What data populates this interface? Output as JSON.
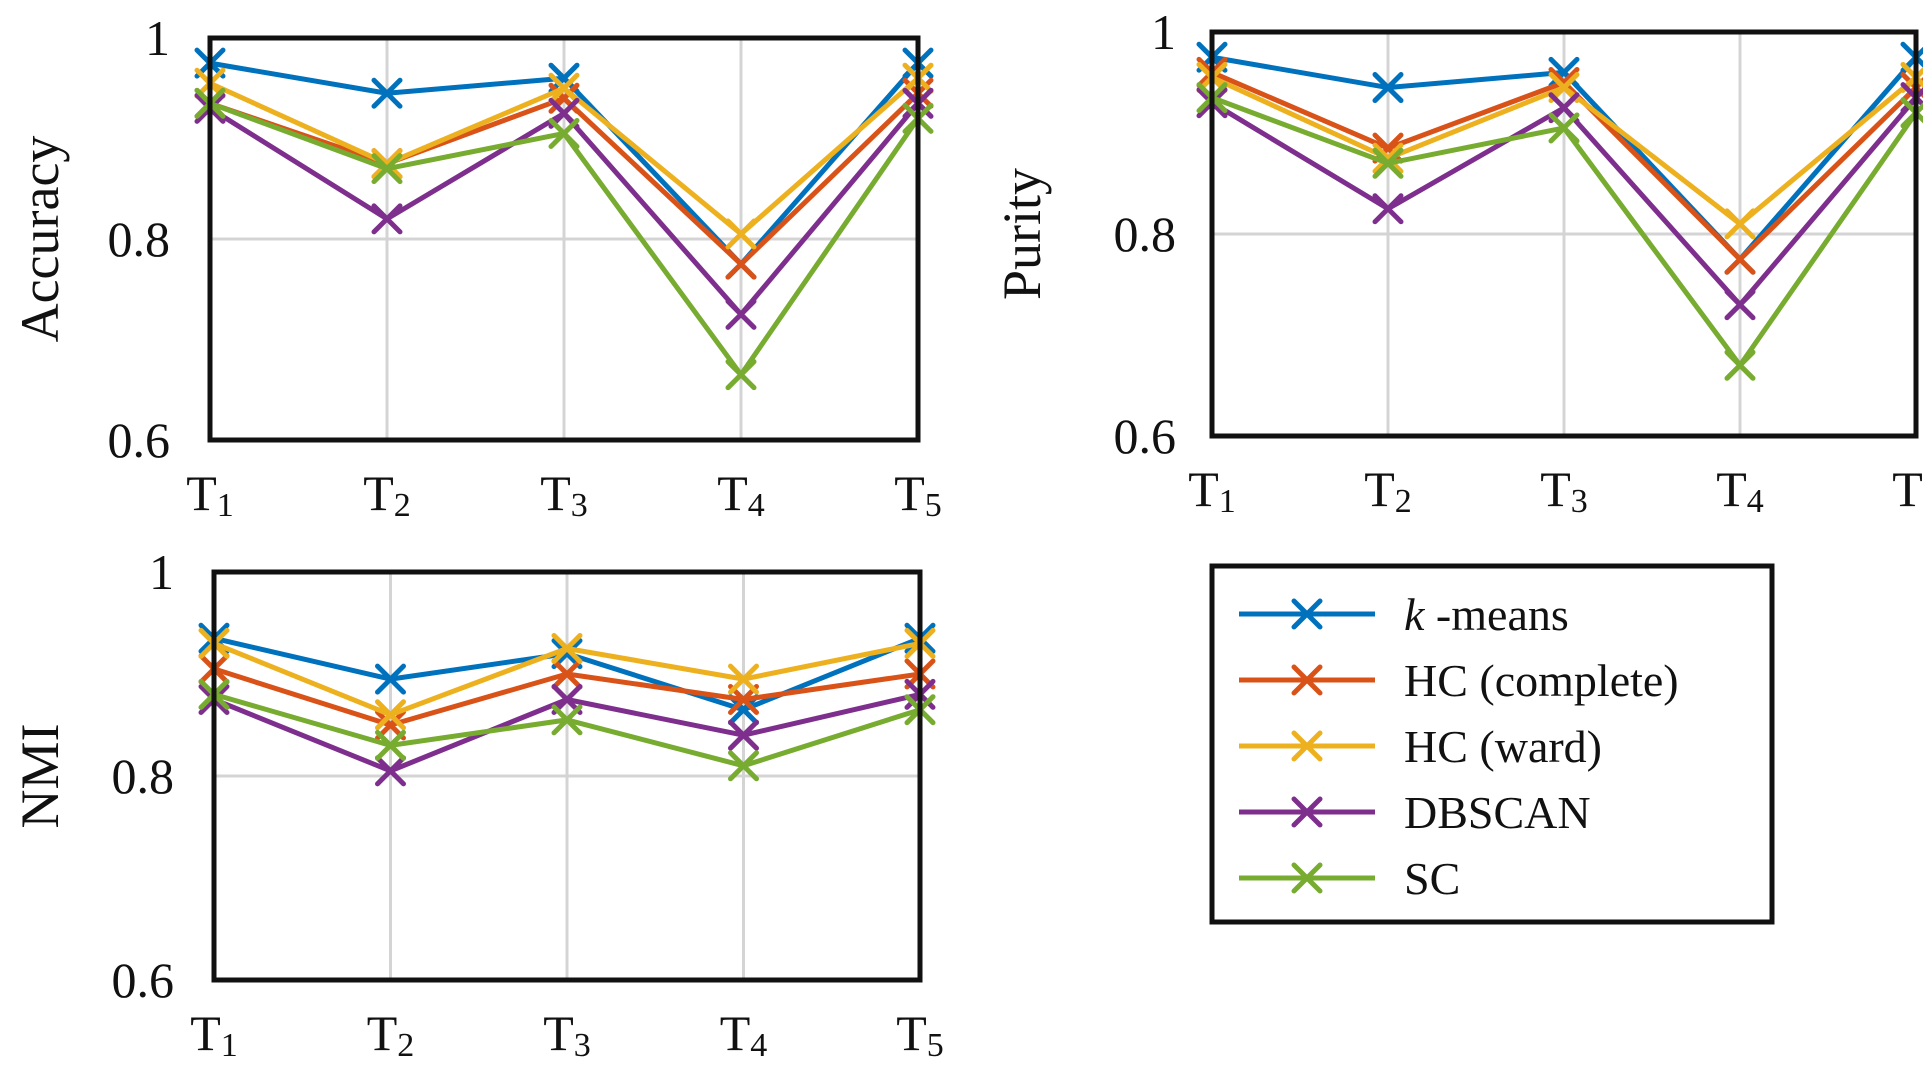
{
  "chart_data": {
    "type": "line",
    "categories": [
      "T1",
      "T2",
      "T3",
      "T4",
      "T5"
    ],
    "legend": {
      "placement": "bottom-right",
      "entries": [
        {
          "prefix": "k",
          "label": " -means",
          "color": "#0072BD"
        },
        {
          "prefix": "",
          "label": "HC (complete)",
          "color": "#D95319"
        },
        {
          "prefix": "",
          "label": "HC (ward)",
          "color": "#EDB120"
        },
        {
          "prefix": "",
          "label": "DBSCAN",
          "color": "#7E2F8E"
        },
        {
          "prefix": "",
          "label": "SC",
          "color": "#77AC30"
        }
      ]
    },
    "panels": [
      {
        "ylabel": "Accuracy",
        "ylim": [
          0.6,
          1.0
        ],
        "yticks": [
          "0.6",
          "0.8",
          "1"
        ],
        "grid": true,
        "series": [
          {
            "name": "k-means",
            "values": [
              0.975,
              0.945,
              0.96,
              0.775,
              0.975
            ]
          },
          {
            "name": "HC (complete)",
            "values": [
              0.935,
              0.875,
              0.94,
              0.775,
              0.945
            ]
          },
          {
            "name": "HC (ward)",
            "values": [
              0.955,
              0.875,
              0.95,
              0.805,
              0.96
            ]
          },
          {
            "name": "DBSCAN",
            "values": [
              0.93,
              0.82,
              0.925,
              0.725,
              0.935
            ]
          },
          {
            "name": "SC",
            "values": [
              0.935,
              0.87,
              0.905,
              0.665,
              0.92
            ]
          }
        ]
      },
      {
        "ylabel": "Purity",
        "ylim": [
          0.6,
          1.0
        ],
        "yticks": [
          "0.6",
          "0.8",
          "1"
        ],
        "grid": true,
        "series": [
          {
            "name": "k-means",
            "values": [
              0.975,
              0.945,
              0.96,
              0.775,
              0.975
            ]
          },
          {
            "name": "HC (complete)",
            "values": [
              0.96,
              0.885,
              0.95,
              0.775,
              0.945
            ]
          },
          {
            "name": "HC (ward)",
            "values": [
              0.955,
              0.875,
              0.945,
              0.81,
              0.955
            ]
          },
          {
            "name": "DBSCAN",
            "values": [
              0.93,
              0.825,
              0.925,
              0.73,
              0.935
            ]
          },
          {
            "name": "SC",
            "values": [
              0.935,
              0.87,
              0.905,
              0.67,
              0.92
            ]
          }
        ]
      },
      {
        "ylabel": "NMI",
        "ylim": [
          0.6,
          1.0
        ],
        "yticks": [
          "0.6",
          "0.8",
          "1"
        ],
        "grid": true,
        "series": [
          {
            "name": "k-means",
            "values": [
              0.935,
              0.895,
              0.92,
              0.865,
              0.935
            ]
          },
          {
            "name": "HC (complete)",
            "values": [
              0.905,
              0.85,
              0.9,
              0.875,
              0.9
            ]
          },
          {
            "name": "HC (ward)",
            "values": [
              0.93,
              0.86,
              0.925,
              0.895,
              0.93
            ]
          },
          {
            "name": "DBSCAN",
            "values": [
              0.875,
              0.805,
              0.875,
              0.84,
              0.88
            ]
          },
          {
            "name": "SC",
            "values": [
              0.88,
              0.83,
              0.855,
              0.81,
              0.865
            ]
          }
        ]
      }
    ]
  }
}
